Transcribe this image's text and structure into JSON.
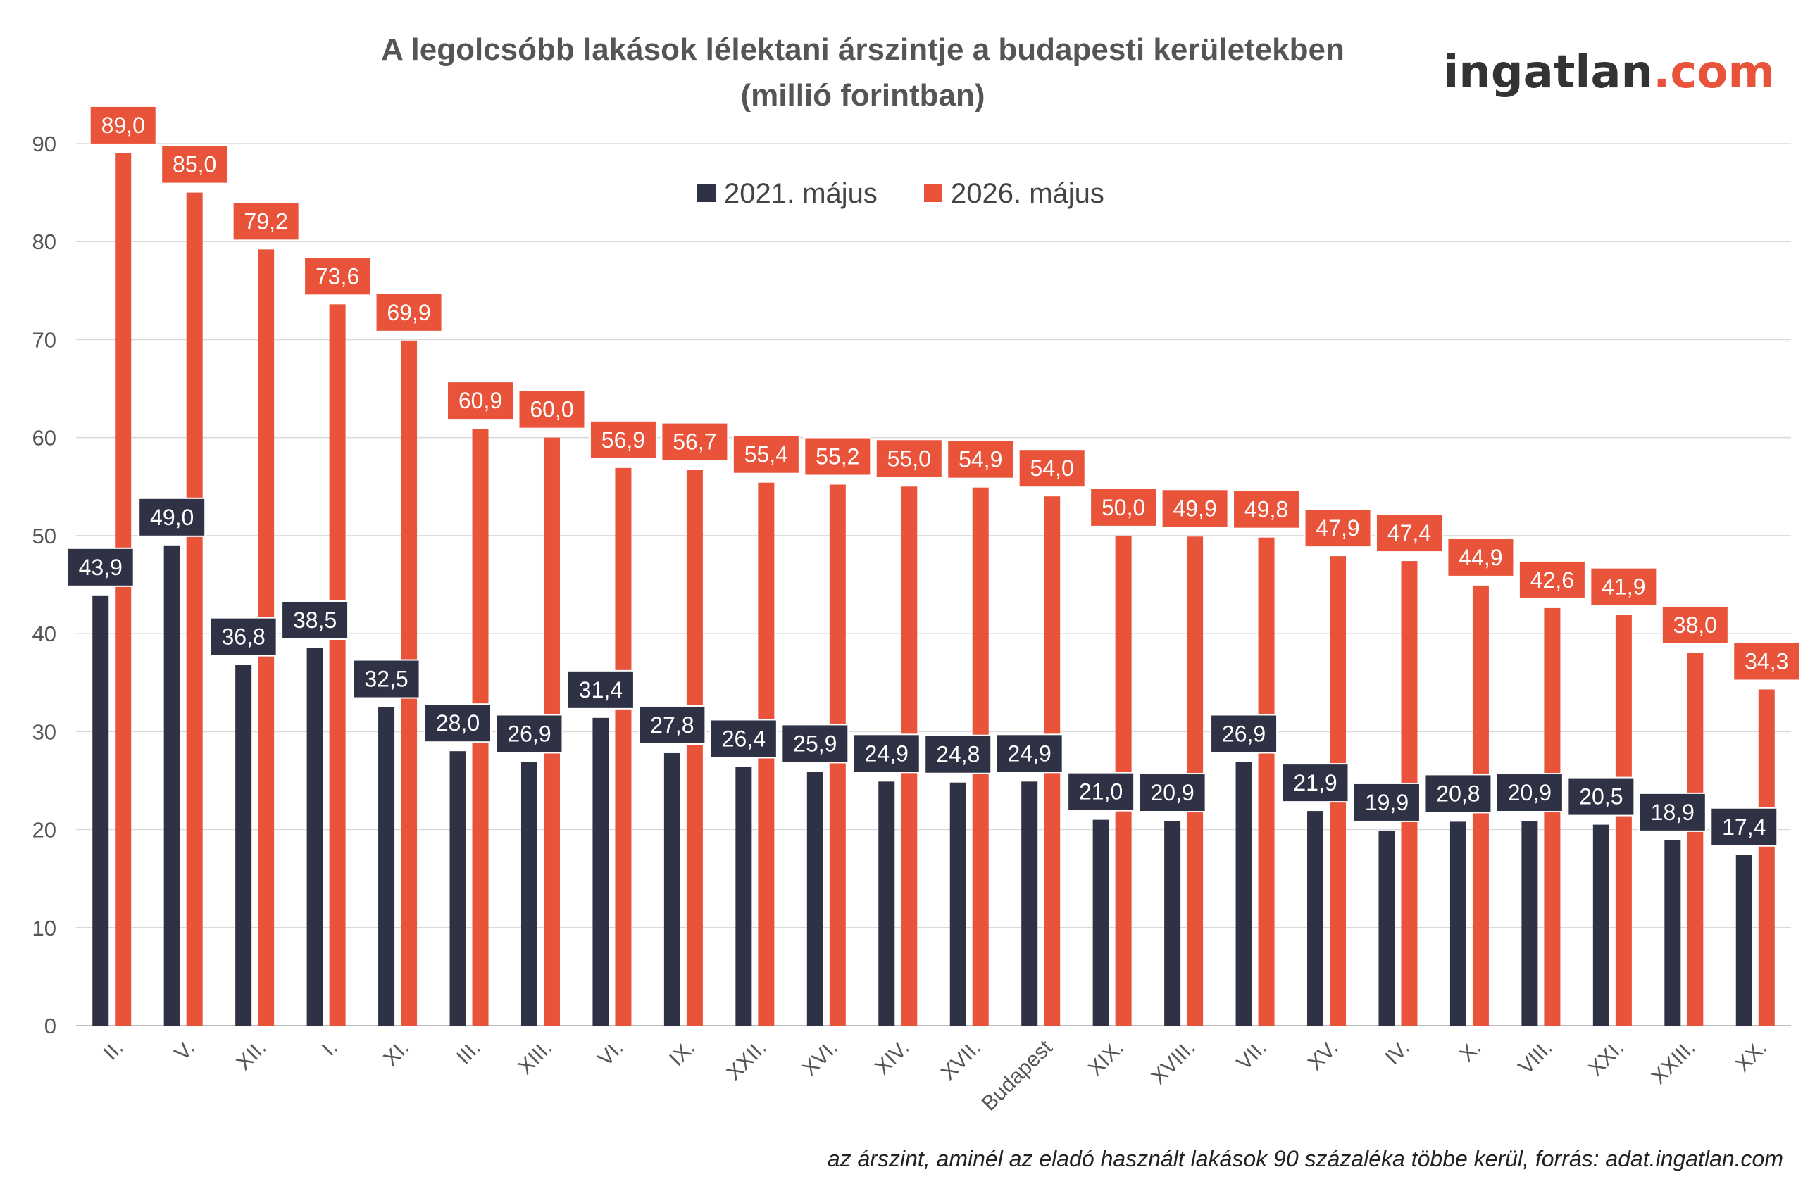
{
  "title_line1": "A legolcsóbb lakások lélektani árszintje a budapesti kerületekben",
  "title_line2": "(millió forintban)",
  "logo": {
    "part1": "ingatlan",
    "part2": ".com",
    "color1": "#333333",
    "color2": "#E8533A"
  },
  "footnote": "az árszint, aminél az eladó használt lakások 90 százaléka többe kerül, forrás: adat.ingatlan.com",
  "colors": {
    "series_2021": "#2E3244",
    "series_2026": "#E8533A",
    "grid": "#D9D9D9",
    "axis": "#BFBFBF"
  },
  "chart_data": {
    "type": "bar",
    "title": "A legolcsóbb lakások lélektani árszintje a budapesti kerületekben (millió forintban)",
    "xlabel": "",
    "ylabel": "",
    "ylim": [
      0,
      90
    ],
    "yticks": [
      "0",
      "10",
      "20",
      "30",
      "40",
      "50",
      "60",
      "70",
      "80",
      "90"
    ],
    "grid": true,
    "legend_position": "top-center",
    "categories": [
      "II.",
      "V.",
      "XII.",
      "I.",
      "XI.",
      "III.",
      "XIII.",
      "VI.",
      "IX.",
      "XXII.",
      "XVI.",
      "XIV.",
      "XVII.",
      "Budapest",
      "XIX.",
      "XVIII.",
      "VII.",
      "XV.",
      "IV.",
      "X.",
      "VIII.",
      "XXI.",
      "XXIII.",
      "XX."
    ],
    "series": [
      {
        "name": "2021. május",
        "values": [
          43.9,
          49.0,
          36.8,
          38.5,
          32.5,
          28.0,
          26.9,
          31.4,
          27.8,
          26.4,
          25.9,
          24.9,
          24.8,
          24.9,
          21.0,
          20.9,
          26.9,
          21.9,
          19.9,
          20.8,
          20.9,
          20.5,
          18.9,
          17.4
        ],
        "labels": [
          "43,9",
          "49,0",
          "36,8",
          "38,5",
          "32,5",
          "28,0",
          "26,9",
          "31,4",
          "27,8",
          "26,4",
          "25,9",
          "24,9",
          "24,8",
          "24,9",
          "21,0",
          "20,9",
          "26,9",
          "21,9",
          "19,9",
          "20,8",
          "20,9",
          "20,5",
          "18,9",
          "17,4"
        ]
      },
      {
        "name": "2026. május",
        "values": [
          89.0,
          85.0,
          79.2,
          73.6,
          69.9,
          60.9,
          60.0,
          56.9,
          56.7,
          55.4,
          55.2,
          55.0,
          54.9,
          54.0,
          50.0,
          49.9,
          49.8,
          47.9,
          47.4,
          44.9,
          42.6,
          41.9,
          38.0,
          34.3
        ],
        "labels": [
          "89,0",
          "85,0",
          "79,2",
          "73,6",
          "69,9",
          "60,9",
          "60,0",
          "56,9",
          "56,7",
          "55,4",
          "55,2",
          "55,0",
          "54,9",
          "54,0",
          "50,0",
          "49,9",
          "49,8",
          "47,9",
          "47,4",
          "44,9",
          "42,6",
          "41,9",
          "38,0",
          "34,3"
        ]
      }
    ]
  }
}
